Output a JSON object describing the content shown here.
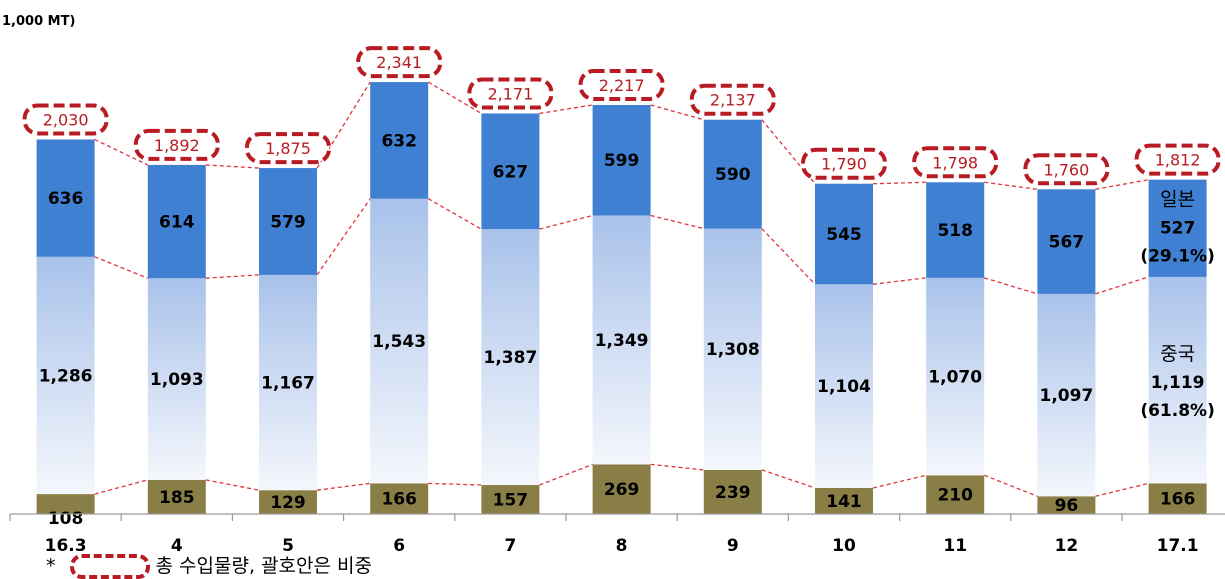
{
  "unit_label": "1,000 MT)",
  "footnote": {
    "marker": "*",
    "text": "총 수입물량, 괄호안은 비중"
  },
  "colors": {
    "japan": "#3f80d2",
    "china_top": "#a9c2ea",
    "china_bottom": "#f4f7fc",
    "other": "#8a7e47",
    "callout": "#b81c22",
    "connector": "#e0343a"
  },
  "chart_data": {
    "type": "bar",
    "stacked": true,
    "categories": [
      "16.3",
      "4",
      "5",
      "6",
      "7",
      "8",
      "9",
      "10",
      "11",
      "12",
      "17.1"
    ],
    "series": [
      {
        "name": "",
        "values": [
          108,
          185,
          129,
          166,
          157,
          269,
          239,
          141,
          210,
          96,
          166
        ]
      },
      {
        "name": "중국",
        "values": [
          1286,
          1093,
          1167,
          1543,
          1387,
          1349,
          1308,
          1104,
          1070,
          1097,
          1119
        ]
      },
      {
        "name": "일본",
        "values": [
          636,
          614,
          579,
          632,
          627,
          599,
          590,
          545,
          518,
          567,
          527
        ]
      }
    ],
    "totals": [
      2030,
      1892,
      1875,
      2341,
      2171,
      2217,
      2137,
      1790,
      1798,
      1760,
      1812
    ],
    "last_bar_shares": {
      "japan": "(29.1%)",
      "china": "(61.8%)"
    },
    "ylim": [
      0,
      2500
    ],
    "title": "",
    "xlabel": "",
    "ylabel": "",
    "grid": false
  }
}
